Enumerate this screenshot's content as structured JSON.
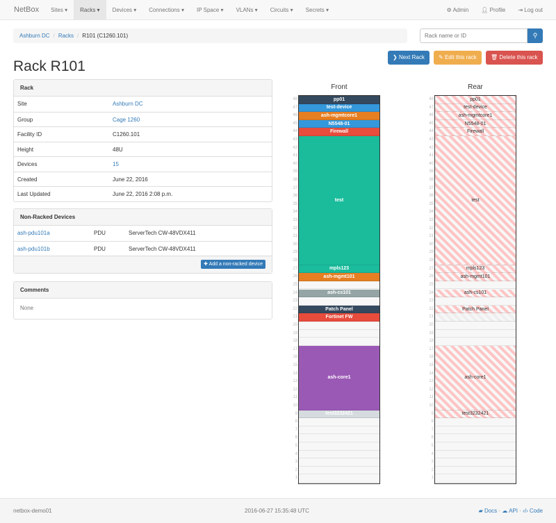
{
  "nav": {
    "brand": "NetBox",
    "items": [
      "Sites ▾",
      "Racks ▾",
      "Devices ▾",
      "Connections ▾",
      "IP Space ▾",
      "VLANs ▾",
      "Circuits ▾",
      "Secrets ▾"
    ],
    "active": 1,
    "admin": "Admin",
    "profile": "Profile",
    "logout": "Log out"
  },
  "breadcrumb": [
    "Ashburn DC",
    "Racks",
    "R101 (C1260.101)"
  ],
  "search": {
    "placeholder": "Rack name or ID"
  },
  "buttons": {
    "next": "Next Rack",
    "edit": "Edit this rack",
    "delete": "Delete this rack"
  },
  "title": "Rack R101",
  "rack_panel": {
    "heading": "Rack",
    "rows": [
      {
        "label": "Site",
        "value": "Ashburn DC",
        "link": true
      },
      {
        "label": "Group",
        "value": "Cage 1260",
        "link": true
      },
      {
        "label": "Facility ID",
        "value": "C1260.101"
      },
      {
        "label": "Height",
        "value": "48U"
      },
      {
        "label": "Devices",
        "value": "15",
        "link": true
      },
      {
        "label": "Created",
        "value": "June 22, 2016"
      },
      {
        "label": "Last Updated",
        "value": "June 22, 2016 2:08 p.m."
      }
    ]
  },
  "nonracked": {
    "heading": "Non-Racked Devices",
    "rows": [
      {
        "name": "ash-pdu101a",
        "role": "PDU",
        "type": "ServerTech CW-48VDX411"
      },
      {
        "name": "ash-pdu101b",
        "role": "PDU",
        "type": "ServerTech CW-48VDX411"
      }
    ],
    "add_label": "Add a non-racked device"
  },
  "comments": {
    "heading": "Comments",
    "text": "None"
  },
  "elevation": {
    "front_label": "Front",
    "rear_label": "Rear",
    "units": 48,
    "devices": [
      {
        "name": "pp01",
        "pos": 48,
        "height": 1,
        "color": "#34495e",
        "rear": true
      },
      {
        "name": "test-device",
        "pos": 47,
        "height": 1,
        "color": "#3498db",
        "rear": true
      },
      {
        "name": "ash-mgmtcore1",
        "pos": 46,
        "height": 1,
        "color": "#e67e22",
        "rear": true
      },
      {
        "name": "N5548-01",
        "pos": 45,
        "height": 1,
        "color": "#3498db",
        "rear": true
      },
      {
        "name": "Firewall",
        "pos": 44,
        "height": 1,
        "color": "#e74c3c",
        "rear": true
      },
      {
        "name": "test",
        "pos": 28,
        "height": 16,
        "color": "#1abc9c",
        "rear": true
      },
      {
        "name": "mpls123",
        "pos": 27,
        "height": 1,
        "color": "#1abc9c",
        "rear": true
      },
      {
        "name": "ash-mgmt101",
        "pos": 26,
        "height": 1,
        "color": "#e67e22",
        "rear": true
      },
      {
        "name": "ash-cs101",
        "pos": 24,
        "height": 1,
        "color": "#95a5a6",
        "rear": true
      },
      {
        "name": "Patch Panel",
        "pos": 22,
        "height": 1,
        "color": "#34495e",
        "rear": true
      },
      {
        "name": "Fortinet FW",
        "pos": 21,
        "height": 1,
        "color": "#e74c3c",
        "rear": false
      },
      {
        "name": "ash-core1",
        "pos": 10,
        "height": 8,
        "color": "#9b59b6",
        "rear": true
      },
      {
        "name": "test3232421",
        "pos": 9,
        "height": 1,
        "color": "#d5dbde",
        "rear": true
      }
    ]
  },
  "footer": {
    "hostname": "netbox-demo01",
    "timestamp": "2016-06-27 15:35:48 UTC",
    "docs": "Docs",
    "api": "API",
    "code": "Code"
  }
}
